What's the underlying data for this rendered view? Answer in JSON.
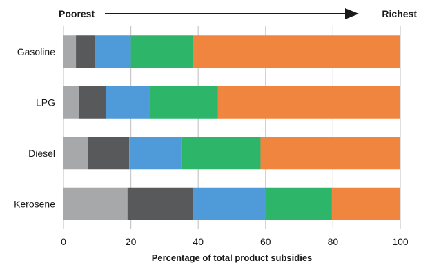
{
  "chart_data": {
    "type": "bar",
    "orientation": "horizontal",
    "stacked": true,
    "categories": [
      "Gasoline",
      "LPG",
      "Diesel",
      "Kerosene"
    ],
    "series": [
      {
        "color": "#a7a8aa",
        "values": [
          3.7,
          4.5,
          7.3,
          19.0
        ]
      },
      {
        "color": "#58595b",
        "values": [
          5.6,
          8.0,
          12.2,
          19.5
        ]
      },
      {
        "color": "#4f9ad8",
        "values": [
          10.7,
          13.0,
          15.4,
          21.6
        ]
      },
      {
        "color": "#2db56a",
        "values": [
          18.6,
          20.3,
          23.6,
          19.6
        ]
      },
      {
        "color": "#f0853f",
        "values": [
          61.4,
          54.2,
          41.5,
          20.3
        ]
      }
    ],
    "xlim": [
      0,
      100
    ],
    "xticks": [
      "0",
      "20",
      "40",
      "60",
      "80",
      "100"
    ],
    "xlabel": "Percentage of total product subsidies",
    "grid": "vertical",
    "legend": "none",
    "annotation": {
      "left": "Poorest",
      "right": "Richest"
    }
  }
}
